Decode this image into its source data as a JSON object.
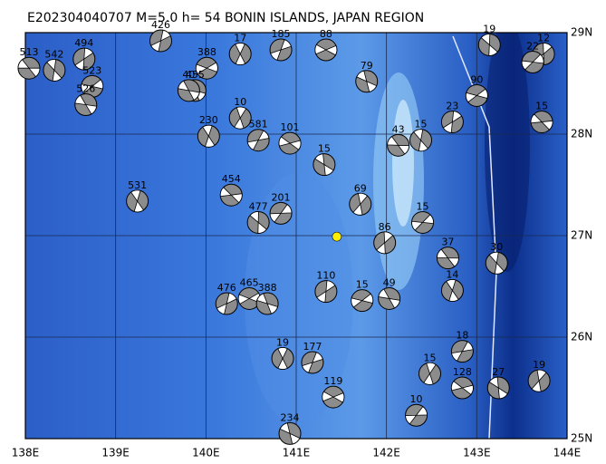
{
  "map": {
    "title": "E202304040707 M=5.0 h= 54 BONIN ISLANDS, JAPAN REGION",
    "lonlim": [
      138,
      144
    ],
    "latlim": [
      25,
      29
    ],
    "lonticks": [
      {
        "value": 138,
        "label": "138E"
      },
      {
        "value": 139,
        "label": "139E"
      },
      {
        "value": 140,
        "label": "140E"
      },
      {
        "value": 141,
        "label": "141E"
      },
      {
        "value": 142,
        "label": "142E"
      },
      {
        "value": 143,
        "label": "143E"
      },
      {
        "value": 144,
        "label": "144E"
      }
    ],
    "latticks": [
      {
        "value": 25,
        "label": "25N"
      },
      {
        "value": 26,
        "label": "26N"
      },
      {
        "value": 27,
        "label": "27N"
      },
      {
        "value": 28,
        "label": "28N"
      },
      {
        "value": 29,
        "label": "29N"
      }
    ],
    "epicenter": {
      "lon": 141.45,
      "lat": 26.99,
      "color": "#ffee00"
    },
    "events": [
      {
        "depth": 513,
        "lon": 138.04,
        "lat": 28.65
      },
      {
        "depth": 542,
        "lon": 138.32,
        "lat": 28.63
      },
      {
        "depth": 494,
        "lon": 138.65,
        "lat": 28.74
      },
      {
        "depth": 523,
        "lon": 138.74,
        "lat": 28.47
      },
      {
        "depth": 526,
        "lon": 138.67,
        "lat": 28.29
      },
      {
        "depth": 531,
        "lon": 139.24,
        "lat": 27.34
      },
      {
        "depth": 426,
        "lon": 139.5,
        "lat": 28.92
      },
      {
        "depth": 388,
        "lon": 140.01,
        "lat": 28.65
      },
      {
        "depth": 455,
        "lon": 139.88,
        "lat": 28.43
      },
      {
        "depth": 17,
        "lon": 140.38,
        "lat": 28.79
      },
      {
        "depth": 185,
        "lon": 140.83,
        "lat": 28.83
      },
      {
        "depth": 88,
        "lon": 141.33,
        "lat": 28.83
      },
      {
        "depth": 79,
        "lon": 141.78,
        "lat": 28.52
      },
      {
        "depth": 10,
        "lon": 140.38,
        "lat": 28.16
      },
      {
        "depth": 581,
        "lon": 140.58,
        "lat": 27.94
      },
      {
        "depth": 101,
        "lon": 140.93,
        "lat": 27.91
      },
      {
        "depth": 15,
        "lon": 141.31,
        "lat": 27.7
      },
      {
        "depth": 69,
        "lon": 141.71,
        "lat": 27.31
      },
      {
        "depth": 201,
        "lon": 140.83,
        "lat": 27.22
      },
      {
        "depth": 454,
        "lon": 140.28,
        "lat": 27.4
      },
      {
        "depth": 477,
        "lon": 140.58,
        "lat": 27.13
      },
      {
        "depth": 86,
        "lon": 141.98,
        "lat": 26.93
      },
      {
        "depth": 15,
        "lon": 142.4,
        "lat": 27.13
      },
      {
        "depth": 37,
        "lon": 142.68,
        "lat": 26.78
      },
      {
        "depth": 30,
        "lon": 143.22,
        "lat": 26.73
      },
      {
        "depth": 110,
        "lon": 141.33,
        "lat": 26.45
      },
      {
        "depth": 15,
        "lon": 141.73,
        "lat": 26.36
      },
      {
        "depth": 49,
        "lon": 142.03,
        "lat": 26.38
      },
      {
        "depth": 14,
        "lon": 142.73,
        "lat": 26.46
      },
      {
        "depth": 476,
        "lon": 140.23,
        "lat": 26.33
      },
      {
        "depth": 465,
        "lon": 140.48,
        "lat": 26.38
      },
      {
        "depth": 388,
        "lon": 140.68,
        "lat": 26.33
      },
      {
        "depth": 19,
        "lon": 140.85,
        "lat": 25.79
      },
      {
        "depth": 177,
        "lon": 141.18,
        "lat": 25.75
      },
      {
        "depth": 119,
        "lon": 141.41,
        "lat": 25.41
      },
      {
        "depth": 234,
        "lon": 140.93,
        "lat": 25.05
      },
      {
        "depth": 15,
        "lon": 142.48,
        "lat": 25.64
      },
      {
        "depth": 18,
        "lon": 142.84,
        "lat": 25.86
      },
      {
        "depth": 128,
        "lon": 142.84,
        "lat": 25.5
      },
      {
        "depth": 27,
        "lon": 143.24,
        "lat": 25.5
      },
      {
        "depth": 19,
        "lon": 143.69,
        "lat": 25.57
      },
      {
        "depth": 10,
        "lon": 142.33,
        "lat": 25.23
      },
      {
        "depth": 15,
        "lon": 143.72,
        "lat": 28.12
      },
      {
        "depth": 19,
        "lon": 143.14,
        "lat": 28.88
      },
      {
        "depth": 12,
        "lon": 143.74,
        "lat": 28.79
      },
      {
        "depth": 22,
        "lon": 143.62,
        "lat": 28.71
      },
      {
        "depth": 43,
        "lon": 142.13,
        "lat": 27.89
      },
      {
        "depth": 15,
        "lon": 142.38,
        "lat": 27.94
      },
      {
        "depth": 23,
        "lon": 142.73,
        "lat": 28.12
      },
      {
        "depth": 90,
        "lon": 143.0,
        "lat": 28.38
      },
      {
        "depth": 40,
        "lon": 139.81,
        "lat": 28.43
      },
      {
        "depth": 230,
        "lon": 140.03,
        "lat": 27.98
      }
    ]
  }
}
